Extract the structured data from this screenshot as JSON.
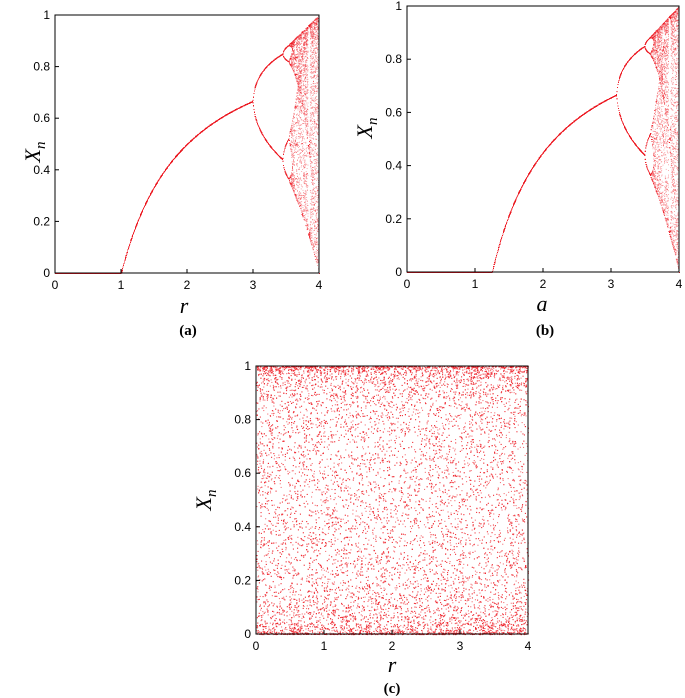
{
  "chart_data": [
    {
      "type": "scatter",
      "panel": "(a)",
      "description_label": "Logistic map bifurcation diagram",
      "xlabel": "r",
      "ylabel": "X_n",
      "xlim": [
        0,
        4
      ],
      "ylim": [
        0,
        1
      ],
      "xticks": [
        "0",
        "1",
        "2",
        "3",
        "4"
      ],
      "yticks": [
        "0",
        "0.2",
        "0.4",
        "0.6",
        "0.8",
        "1"
      ],
      "map": "logistic",
      "grid": false,
      "color": "#ee1c24"
    },
    {
      "type": "scatter",
      "panel": "(b)",
      "xlabel": "a",
      "ylabel": "X_n",
      "xlim": [
        0,
        4
      ],
      "ylim": [
        0,
        1
      ],
      "xticks": [
        "0",
        "1",
        "2",
        "3",
        "4"
      ],
      "yticks": [
        "0",
        "0.2",
        "0.4",
        "0.6",
        "0.8",
        "1"
      ],
      "map": "modified-logistic",
      "grid": false,
      "color": "#ee1c24"
    },
    {
      "type": "scatter",
      "panel": "(c)",
      "xlabel": "r",
      "ylabel": "X_n",
      "xlim": [
        0,
        4
      ],
      "ylim": [
        0,
        1
      ],
      "xticks": [
        "0",
        "1",
        "2",
        "3",
        "4"
      ],
      "yticks": [
        "0",
        "0.2",
        "0.4",
        "0.6",
        "0.8",
        "1"
      ],
      "map": "fully-chaotic",
      "grid": false,
      "color": "#ee1c24"
    }
  ],
  "labels": {
    "a": {
      "sub": "(a)",
      "x": "r",
      "y": "X",
      "ysub": "n"
    },
    "b": {
      "sub": "(b)",
      "x": "a",
      "y": "X",
      "ysub": "n"
    },
    "c": {
      "sub": "(c)",
      "x": "r",
      "y": "X",
      "ysub": "n"
    }
  }
}
